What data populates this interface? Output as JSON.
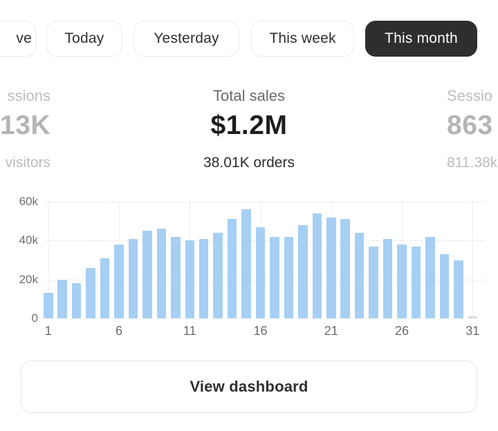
{
  "filters": {
    "live_partial_label": "ve",
    "today_label": "Today",
    "yesterday_label": "Yesterday",
    "this_week_label": "This week",
    "this_month_label": "This month",
    "selected": "This month",
    "selected_bg_color": "#2e2e2e"
  },
  "stats": {
    "left": {
      "label_fragment": "ssions",
      "value_fragment": "13K",
      "sub_fragment": "visitors"
    },
    "center": {
      "label": "Total sales",
      "value": "$1.2M",
      "sub": "38.01K orders"
    },
    "right": {
      "label_fragment": "Sessio",
      "value_fragment": "863",
      "sub_fragment": "811.38k"
    }
  },
  "chart_data": {
    "type": "bar",
    "title": "",
    "xlabel": "",
    "ylabel": "",
    "x": [
      1,
      2,
      3,
      4,
      5,
      6,
      7,
      8,
      9,
      10,
      11,
      12,
      13,
      14,
      15,
      16,
      17,
      18,
      19,
      20,
      21,
      22,
      23,
      24,
      25,
      26,
      27,
      28,
      29,
      30,
      31
    ],
    "values": [
      13000,
      20000,
      18000,
      26000,
      31000,
      38000,
      41000,
      45000,
      46000,
      42000,
      40000,
      41000,
      44000,
      51000,
      56000,
      47000,
      42000,
      42000,
      48000,
      54000,
      52000,
      51000,
      44000,
      37000,
      41000,
      38000,
      37000,
      42000,
      33000,
      30000,
      600
    ],
    "x_ticks": [
      {
        "day": 1,
        "label": "1"
      },
      {
        "day": 6,
        "label": "6"
      },
      {
        "day": 11,
        "label": "11"
      },
      {
        "day": 16,
        "label": "16"
      },
      {
        "day": 21,
        "label": "21"
      },
      {
        "day": 26,
        "label": "26"
      },
      {
        "day": 31,
        "label": "31"
      }
    ],
    "y_ticks": [
      {
        "value": 0,
        "label": "0"
      },
      {
        "value": 20000,
        "label": "20k"
      },
      {
        "value": 40000,
        "label": "40k"
      },
      {
        "value": 60000,
        "label": "60k"
      }
    ],
    "ylim": [
      0,
      60000
    ],
    "grid": true,
    "legend": false,
    "bar_color": "#a6cff3",
    "last_bar_color": "#d9d9d9"
  },
  "footer": {
    "view_dashboard_label": "View dashboard"
  }
}
